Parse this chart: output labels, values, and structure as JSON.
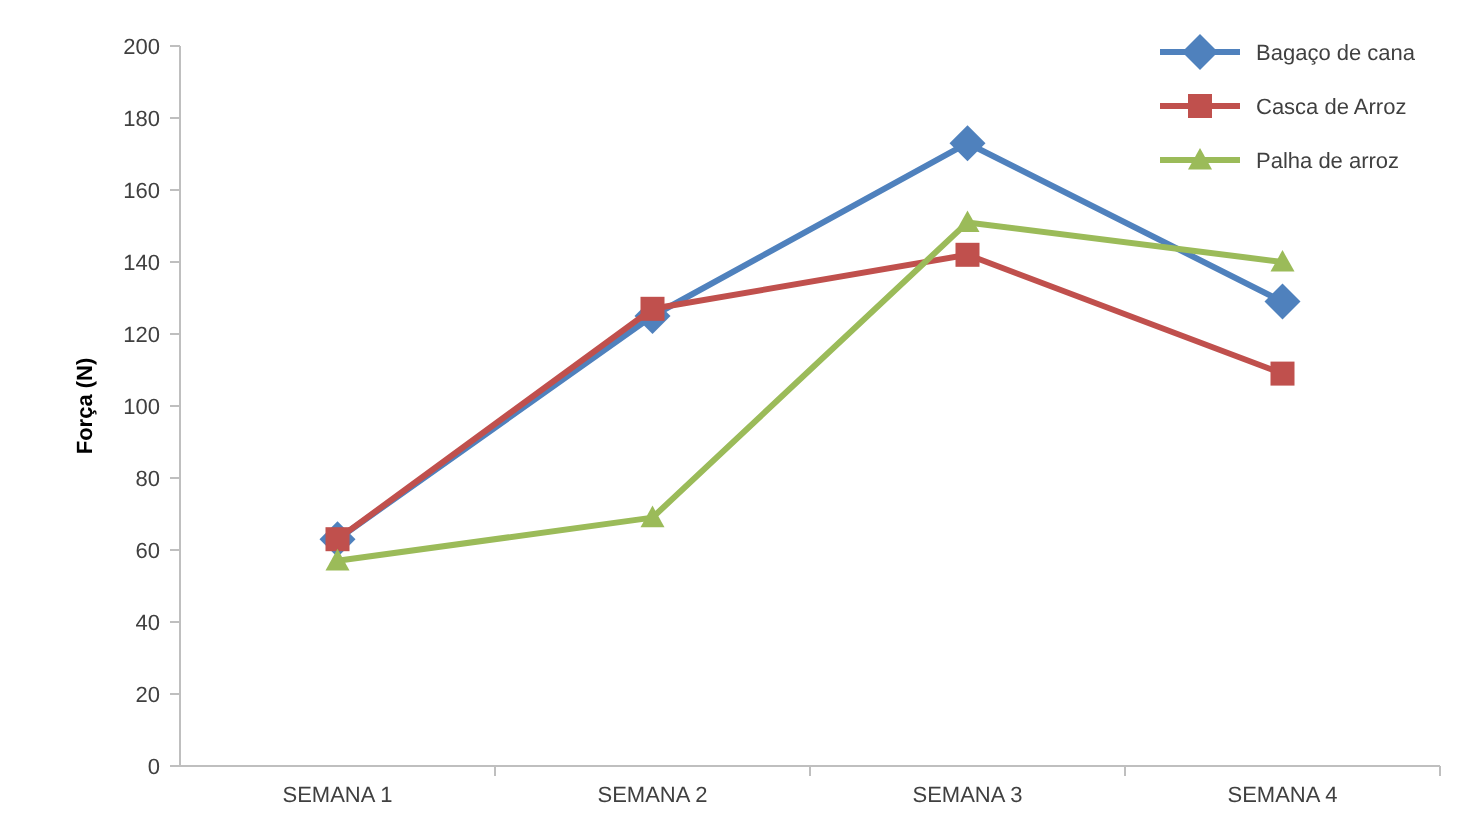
{
  "chart_data": {
    "type": "line",
    "ylabel": "Força (N)",
    "categories": [
      "SEMANA 1",
      "SEMANA 2",
      "SEMANA 3",
      "SEMANA 4"
    ],
    "series": [
      {
        "name": "Bagaço de cana",
        "color": "#4f81bd",
        "marker": "diamond",
        "values": [
          63,
          125,
          173,
          129
        ]
      },
      {
        "name": "Casca de Arroz",
        "color": "#c0504d",
        "marker": "square",
        "values": [
          63,
          127,
          142,
          109
        ]
      },
      {
        "name": "Palha de arroz",
        "color": "#9bbb59",
        "marker": "triangle",
        "values": [
          57,
          69,
          151,
          140
        ]
      }
    ],
    "ylim": [
      0,
      200
    ],
    "yticks": [
      0,
      20,
      40,
      60,
      80,
      100,
      120,
      140,
      160,
      180,
      200
    ],
    "grid": false,
    "legend": "top right"
  }
}
